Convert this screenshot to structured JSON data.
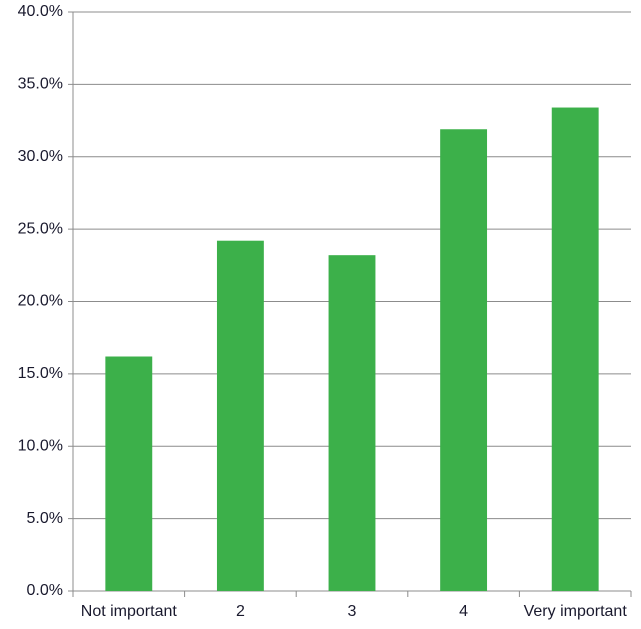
{
  "chart_data": {
    "type": "bar",
    "categories": [
      "Not important",
      "2",
      "3",
      "4",
      "Very important"
    ],
    "values": [
      16.2,
      24.2,
      23.2,
      31.9,
      33.4
    ],
    "color": "#3cb04a",
    "ylim": [
      0,
      40
    ],
    "yticks": [
      {
        "value": 0,
        "label": "0.0%"
      },
      {
        "value": 5,
        "label": "5.0%"
      },
      {
        "value": 10,
        "label": "10.0%"
      },
      {
        "value": 15,
        "label": "15.0%"
      },
      {
        "value": 20,
        "label": "20.0%"
      },
      {
        "value": 25,
        "label": "25.0%"
      },
      {
        "value": 30,
        "label": "30.0%"
      },
      {
        "value": 35,
        "label": "35.0%"
      },
      {
        "value": 40,
        "label": "40.0%"
      }
    ],
    "grid": true
  }
}
